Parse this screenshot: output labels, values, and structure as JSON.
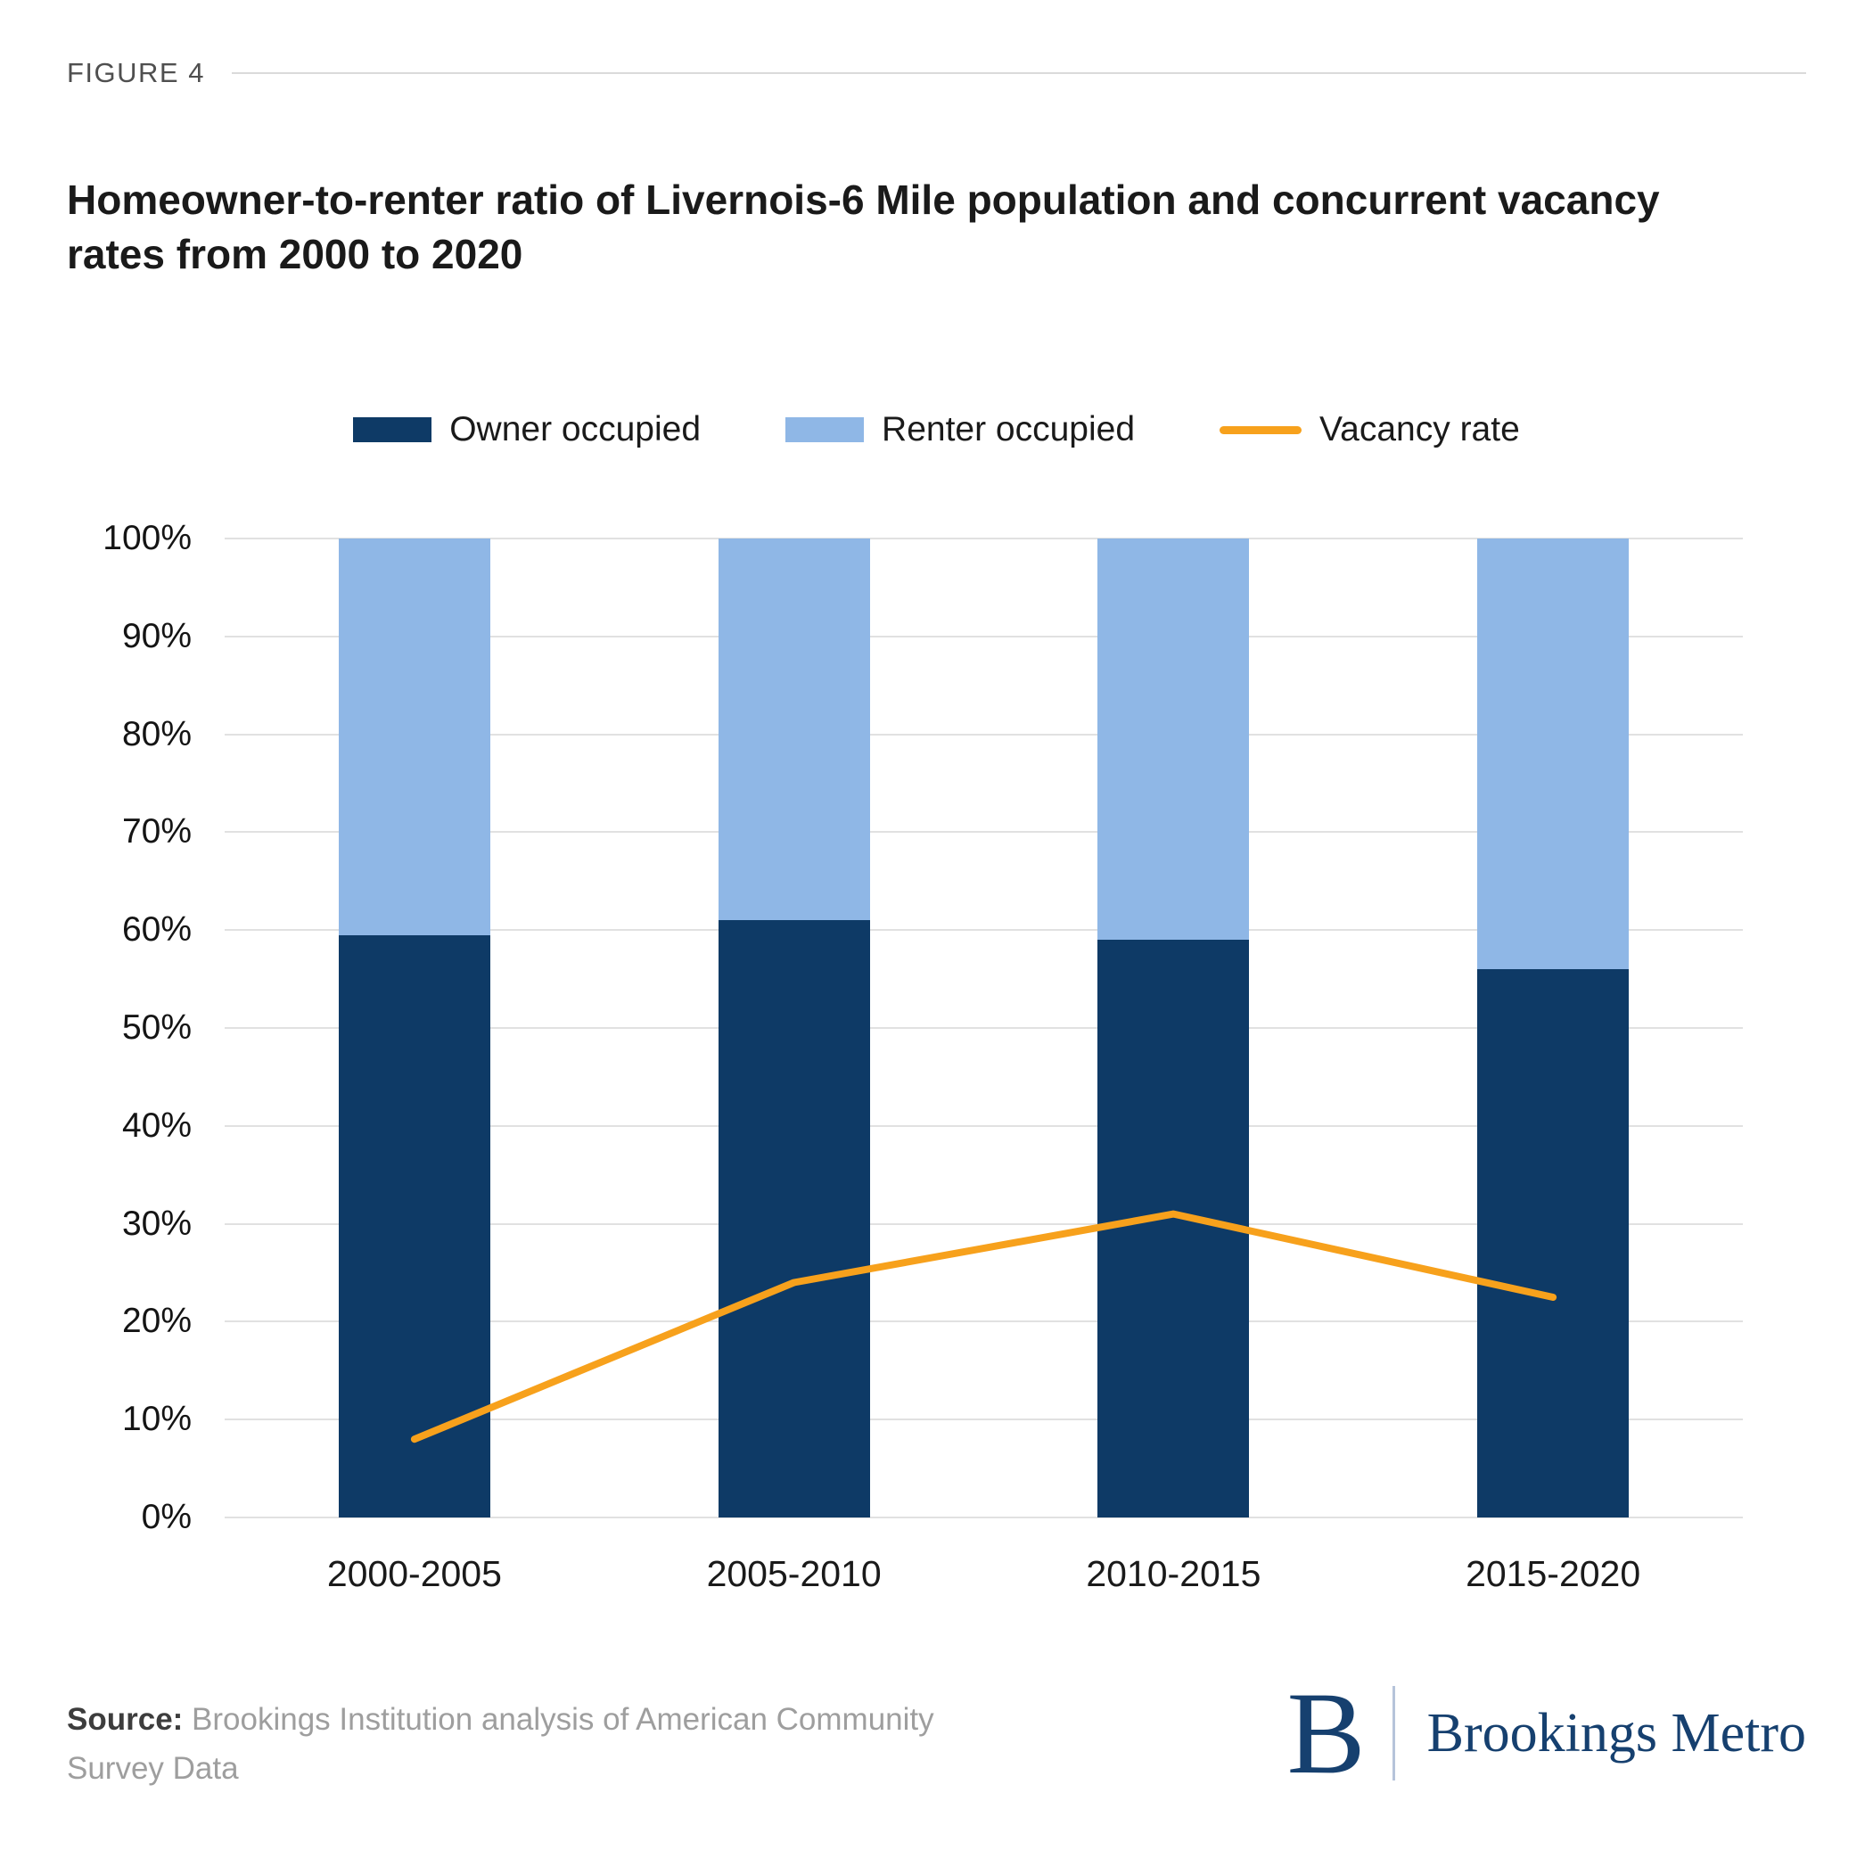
{
  "figure_label": "FIGURE 4",
  "title": "Homeowner-to-renter ratio of Livernois-6 Mile population and concurrent vacancy rates from 2000 to 2020",
  "legend": [
    {
      "label": "Owner occupied",
      "kind": "swatch",
      "color": "#0e3a66"
    },
    {
      "label": "Renter occupied",
      "kind": "swatch",
      "color": "#8fb7e6"
    },
    {
      "label": "Vacancy rate",
      "kind": "line",
      "color": "#f7a11c"
    }
  ],
  "chart_data": {
    "type": "bar",
    "stacked": true,
    "title": "Homeowner-to-renter ratio of Livernois-6 Mile population and concurrent vacancy rates from 2000 to 2020",
    "xlabel": "",
    "ylabel": "",
    "categories": [
      "2000-2005",
      "2005-2010",
      "2010-2015",
      "2015-2020"
    ],
    "series": [
      {
        "name": "Owner occupied",
        "type": "bar",
        "color": "#0e3a66",
        "values": [
          59.5,
          61,
          59,
          56
        ]
      },
      {
        "name": "Renter occupied",
        "type": "bar",
        "color": "#8fb7e6",
        "values": [
          40.5,
          39,
          41,
          44
        ]
      },
      {
        "name": "Vacancy rate",
        "type": "line",
        "color": "#f7a11c",
        "values": [
          8,
          24,
          31,
          22.5
        ]
      }
    ],
    "ylim": [
      0,
      100
    ],
    "ytick_values": [
      0,
      10,
      20,
      30,
      40,
      50,
      60,
      70,
      80,
      90,
      100
    ],
    "ytick_labels": [
      "0%",
      "10%",
      "20%",
      "30%",
      "40%",
      "50%",
      "60%",
      "70%",
      "80%",
      "90%",
      "100%"
    ],
    "grid": true,
    "legend_position": "top"
  },
  "source": {
    "label": "Source:",
    "text": "Brookings Institution analysis of American Community Survey Data"
  },
  "logo": {
    "initial": "B",
    "name": "Brookings Metro",
    "color": "#16406f"
  }
}
